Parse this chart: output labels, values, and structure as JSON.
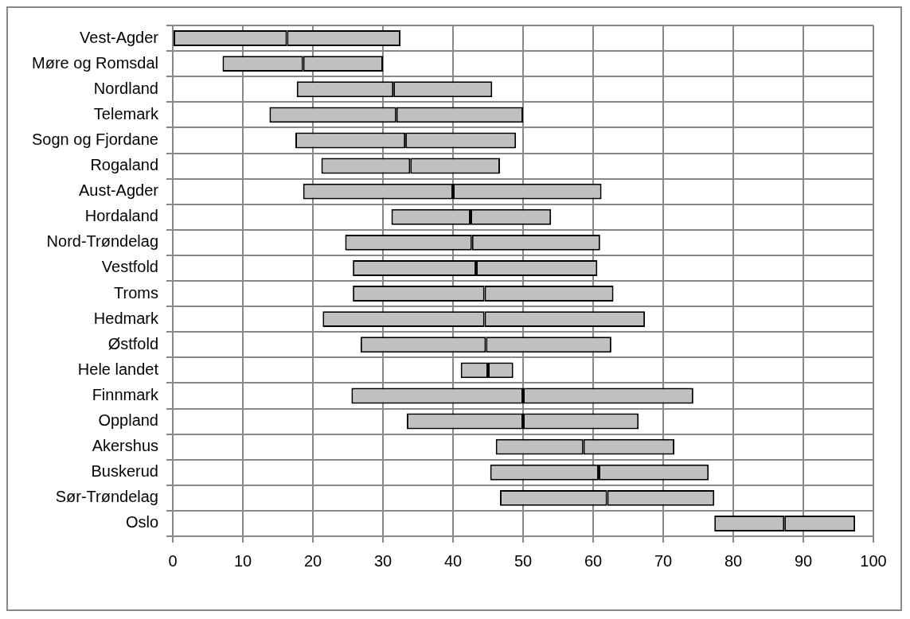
{
  "chart_data": {
    "type": "bar",
    "orientation": "horizontal",
    "categories": [
      "Vest-Agder",
      "Møre og Romsdal",
      "Nordland",
      "Telemark",
      "Sogn og Fjordane",
      "Rogaland",
      "Aust-Agder",
      "Hordaland",
      "Nord-Trøndelag",
      "Vestfold",
      "Troms",
      "Hedmark",
      "Østfold",
      "Hele landet",
      "Finnmark",
      "Oppland",
      "Akershus",
      "Buskerud",
      "Sør-Trøndelag",
      "Oslo"
    ],
    "series": [
      {
        "color": "#c0c0c0",
        "base": [
          0,
          7.1,
          17.7,
          13.8,
          17.5,
          21.2,
          18.6,
          31.2,
          24.6,
          25.7,
          25.7,
          21.4,
          26.8,
          41.1,
          25.5,
          33.4,
          46.1,
          45.3,
          46.7,
          77.3
        ],
        "values": [
          16.3,
          11.5,
          13.8,
          18.1,
          15.7,
          12.7,
          21.4,
          11.3,
          18.1,
          17.6,
          18.8,
          23.1,
          17.9,
          3.9,
          24.5,
          16.6,
          12.5,
          15.5,
          15.3,
          10
        ]
      },
      {
        "color": "#c0c0c0",
        "base": [
          16.3,
          18.6,
          31.5,
          31.9,
          33.2,
          33.9,
          40,
          42.5,
          42.7,
          43.3,
          44.5,
          44.5,
          44.7,
          45,
          50,
          50,
          58.6,
          60.8,
          62,
          87.3
        ],
        "values": [
          16.2,
          11.4,
          14.1,
          18.1,
          15.8,
          12.8,
          21.2,
          11.5,
          18.3,
          17.3,
          18.4,
          22.9,
          17.9,
          3.6,
          24.3,
          16.5,
          13,
          15.7,
          15.3,
          10.1
        ]
      }
    ],
    "xlim": [
      0,
      100
    ],
    "xticks": [
      0,
      10,
      20,
      30,
      40,
      50,
      60,
      70,
      80,
      90,
      100
    ],
    "grid": true,
    "legend": false
  }
}
